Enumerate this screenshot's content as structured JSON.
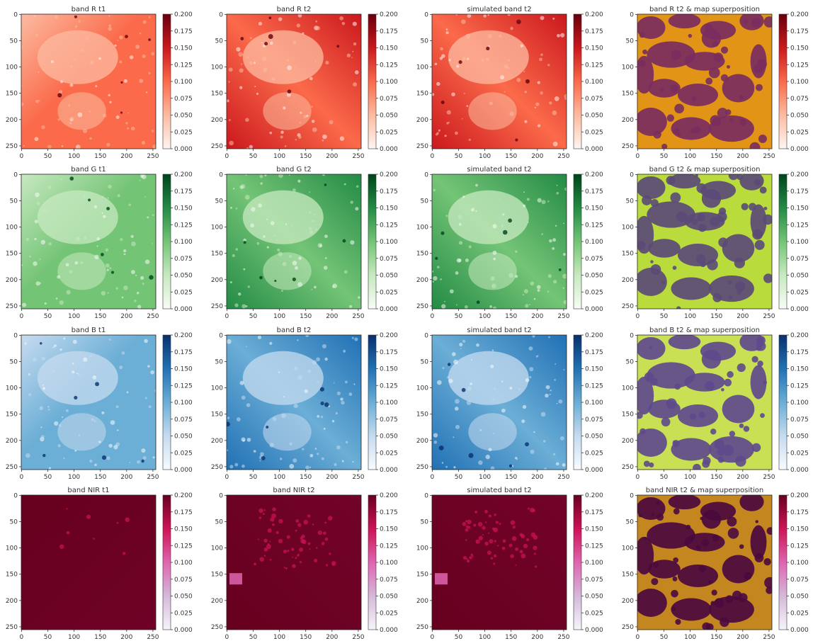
{
  "figure": {
    "rows": [
      {
        "band": "R",
        "palette": [
          "#fff5f0",
          "#fcbba1",
          "#fb6a4a",
          "#cb181d",
          "#67000d"
        ],
        "overlay": {
          "background": "#e29416",
          "blob": "#7a2d5e"
        },
        "panels": [
          {
            "title": "band R t1",
            "kind": "t1"
          },
          {
            "title": "band R t2",
            "kind": "t2"
          },
          {
            "title": "simulated band t2",
            "kind": "sim"
          },
          {
            "title": "band R t2 & map superposition",
            "kind": "overlay"
          }
        ]
      },
      {
        "band": "G",
        "palette": [
          "#f7fcf5",
          "#c7e9c0",
          "#74c476",
          "#238b45",
          "#00441b"
        ],
        "overlay": {
          "background": "#b9dc3c",
          "blob": "#5b4a78"
        },
        "panels": [
          {
            "title": "band G t1",
            "kind": "t1"
          },
          {
            "title": "band G t2",
            "kind": "t2"
          },
          {
            "title": "simulated band t2",
            "kind": "sim"
          },
          {
            "title": "band G t2 & map superposition",
            "kind": "overlay"
          }
        ]
      },
      {
        "band": "B",
        "palette": [
          "#f7fbff",
          "#c6dbef",
          "#6baed6",
          "#2171b5",
          "#08306b"
        ],
        "overlay": {
          "background": "#c9df54",
          "blob": "#5e4a8c"
        },
        "panels": [
          {
            "title": "band B t1",
            "kind": "t1"
          },
          {
            "title": "band B t2",
            "kind": "t2"
          },
          {
            "title": "simulated band t2",
            "kind": "sim"
          },
          {
            "title": "band B t2 & map superposition",
            "kind": "overlay"
          }
        ]
      },
      {
        "band": "NIR",
        "palette": [
          "#f7f4f9",
          "#d4b9da",
          "#df65b0",
          "#ce1256",
          "#67001f"
        ],
        "overlay": {
          "background": "#c4861f",
          "blob": "#4b0a3e"
        },
        "panels": [
          {
            "title": "band NIR t1",
            "kind": "t1"
          },
          {
            "title": "band NIR t2",
            "kind": "t2"
          },
          {
            "title": "simulated band t2",
            "kind": "sim"
          },
          {
            "title": "band NIR t2 & map superposition",
            "kind": "overlay"
          }
        ]
      }
    ]
  },
  "chart_data": {
    "type": "heatmap",
    "panel_count": 16,
    "x_ticks": [
      0,
      50,
      100,
      150,
      200,
      250
    ],
    "y_ticks": [
      0,
      50,
      100,
      150,
      200,
      250
    ],
    "xlim": [
      0,
      255
    ],
    "ylim": [
      255,
      0
    ],
    "colorbar": {
      "ticks": [
        "0.000",
        "0.025",
        "0.050",
        "0.075",
        "0.100",
        "0.125",
        "0.150",
        "0.175",
        "0.200"
      ],
      "range": [
        0,
        0.2
      ]
    },
    "image_size": [
      256,
      256
    ]
  }
}
